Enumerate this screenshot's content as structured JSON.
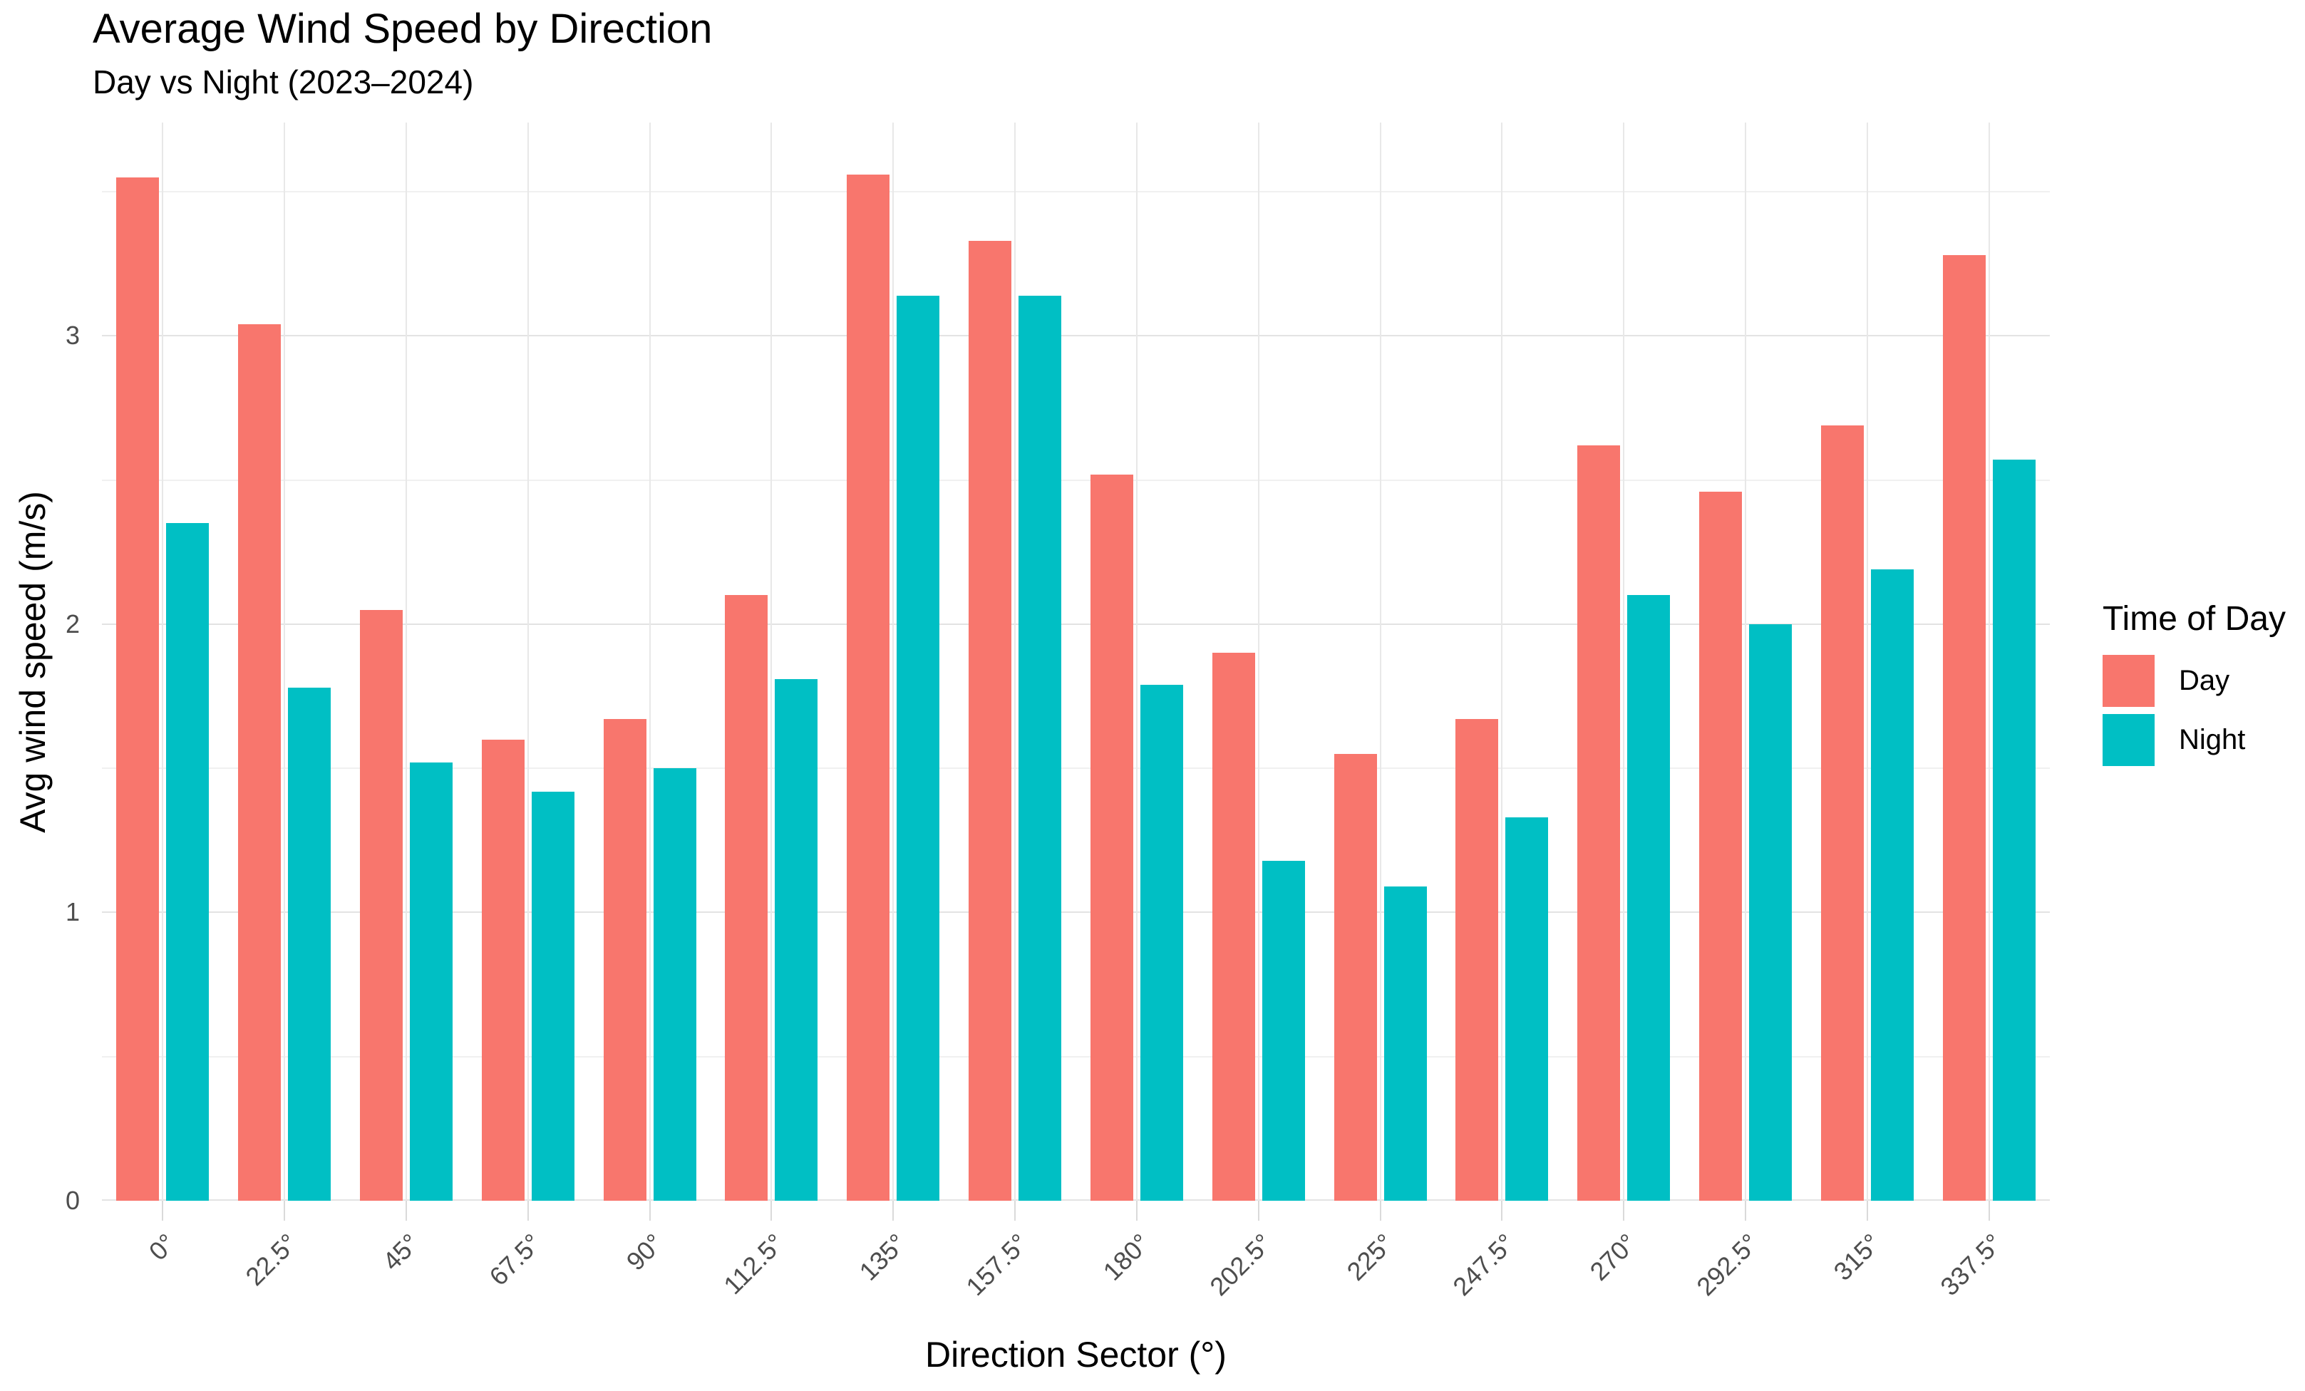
{
  "header": {
    "title": "Average Wind Speed by Direction",
    "subtitle": "Day vs Night (2023–2024)"
  },
  "legend": {
    "title": "Time of Day",
    "items": [
      {
        "label": "Day",
        "color": "#F8766D"
      },
      {
        "label": "Night",
        "color": "#00BFC4"
      }
    ]
  },
  "chart_data": {
    "type": "bar",
    "title": "Average Wind Speed by Direction",
    "subtitle": "Day vs Night (2023–2024)",
    "xlabel": "Direction Sector (°)",
    "ylabel": "Avg wind speed (m/s)",
    "categories": [
      "0°",
      "22.5°",
      "45°",
      "67.5°",
      "90°",
      "112.5°",
      "135°",
      "157.5°",
      "180°",
      "202.5°",
      "225°",
      "247.5°",
      "270°",
      "292.5°",
      "315°",
      "337.5°"
    ],
    "series": [
      {
        "name": "Day",
        "color": "#F8766D",
        "values": [
          3.55,
          3.04,
          2.05,
          1.6,
          1.67,
          2.1,
          3.56,
          3.33,
          2.52,
          1.9,
          1.55,
          1.67,
          2.62,
          2.46,
          2.69,
          3.28
        ]
      },
      {
        "name": "Night",
        "color": "#00BFC4",
        "values": [
          2.35,
          1.78,
          1.52,
          1.42,
          1.5,
          1.81,
          3.14,
          3.14,
          1.79,
          1.18,
          1.09,
          1.33,
          2.1,
          2.0,
          2.19,
          2.57
        ]
      }
    ],
    "ylim": [
      0,
      3.74
    ],
    "y_major_ticks": [
      0,
      1,
      2,
      3
    ],
    "y_minor_step": 0.5,
    "grid": true,
    "legend_position": "right",
    "bar_grouping": "dodge"
  }
}
